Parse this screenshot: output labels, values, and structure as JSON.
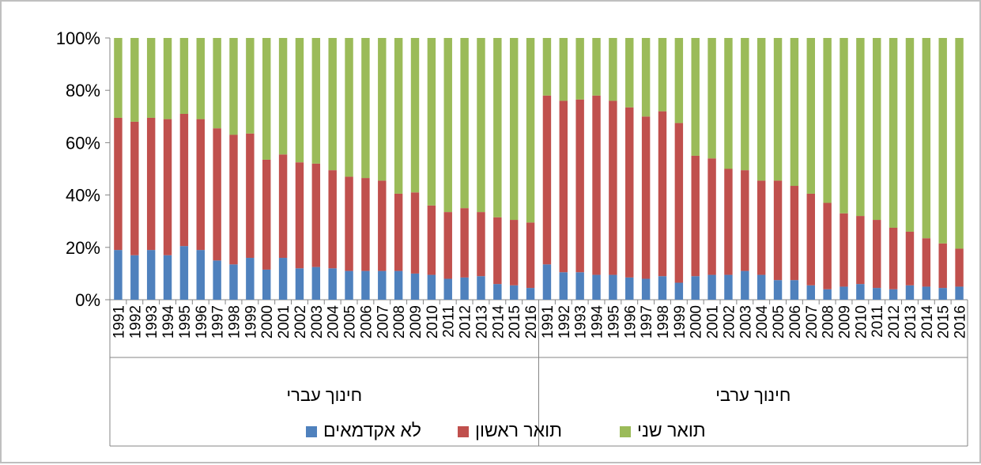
{
  "chart_data": {
    "type": "bar",
    "stacked": true,
    "percent_stacked": true,
    "groups": [
      {
        "name": "חינוך עברי",
        "categories": [
          "1991",
          "1992",
          "1993",
          "1994",
          "1995",
          "1996",
          "1997",
          "1998",
          "1999",
          "2000",
          "2001",
          "2002",
          "2003",
          "2004",
          "2005",
          "2006",
          "2007",
          "2008",
          "2009",
          "2010",
          "2011",
          "2012",
          "2013",
          "2014",
          "2015",
          "2016"
        ],
        "series": [
          {
            "name": "לא אקדמאים",
            "values": [
              19,
              17,
              19,
              17,
              20.5,
              19,
              15,
              13.5,
              16,
              11.5,
              16,
              12,
              12.5,
              12,
              11,
              11,
              11,
              11,
              10,
              9.5,
              8,
              8.5,
              9,
              6,
              5.5,
              4.5
            ]
          },
          {
            "name": "תואר ראשון",
            "values": [
              50.5,
              51,
              50.5,
              52,
              50.5,
              50,
              50.5,
              49.5,
              47.5,
              42,
              39.5,
              40.5,
              39.5,
              37.5,
              36,
              35.5,
              34.5,
              29.5,
              31,
              26.5,
              25.5,
              26.5,
              24.5,
              25.5,
              25,
              25
            ]
          },
          {
            "name": "תואר שני",
            "values": [
              30.5,
              32,
              30.5,
              31,
              29,
              31,
              34.5,
              37,
              36.5,
              46.5,
              44.5,
              47.5,
              48,
              50.5,
              53,
              53.5,
              54.5,
              59.5,
              59,
              64,
              66.5,
              65,
              66.5,
              68.5,
              69.5,
              70.5
            ]
          }
        ]
      },
      {
        "name": "חינוך ערבי",
        "categories": [
          "1991",
          "1992",
          "1993",
          "1994",
          "1995",
          "1996",
          "1997",
          "1998",
          "1999",
          "2000",
          "2001",
          "2002",
          "2003",
          "2004",
          "2005",
          "2006",
          "2007",
          "2008",
          "2009",
          "2010",
          "2011",
          "2012",
          "2013",
          "2014",
          "2015",
          "2016"
        ],
        "series": [
          {
            "name": "לא אקדמאים",
            "values": [
              13.5,
              10.5,
              10.5,
              9.5,
              9.5,
              8.5,
              8,
              9,
              6.5,
              9,
              9.5,
              9.5,
              11,
              9.5,
              7.5,
              7.5,
              5.5,
              4,
              5,
              6,
              4.5,
              4,
              5.5,
              5,
              4.5,
              5
            ]
          },
          {
            "name": "תואר ראשון",
            "values": [
              64.5,
              65.5,
              66,
              68.5,
              66.5,
              65,
              62,
              63,
              61,
              46,
              44.5,
              40.5,
              38.5,
              36,
              38,
              36,
              35,
              33,
              28,
              26,
              26,
              23.5,
              20.5,
              18.5,
              17,
              14.5
            ]
          },
          {
            "name": "תואר שני",
            "values": [
              22,
              24,
              23.5,
              22,
              24,
              26.5,
              30,
              28,
              32.5,
              45,
              46,
              50,
              50.5,
              54.5,
              54.5,
              56.5,
              59.5,
              63,
              67,
              68,
              69.5,
              72.5,
              74,
              76.5,
              78.5,
              80.5
            ]
          }
        ]
      }
    ],
    "y_ticks": [
      "0%",
      "20%",
      "40%",
      "60%",
      "80%",
      "100%"
    ],
    "ylim": [
      0,
      100
    ],
    "colors": [
      "#4f81bd",
      "#c0504d",
      "#9bbb59"
    ],
    "legend_position": "bottom",
    "grid": false
  }
}
